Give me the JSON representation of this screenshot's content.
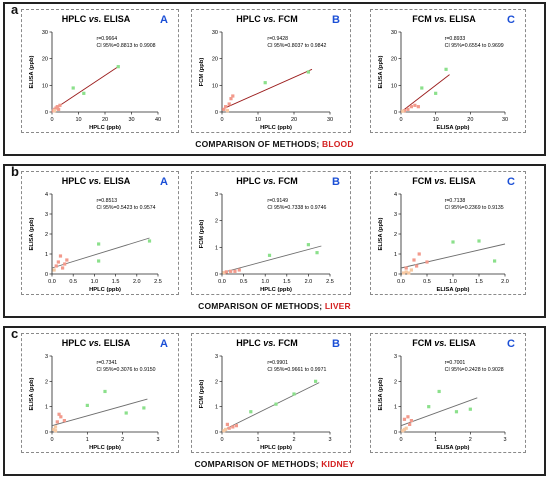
{
  "colors": {
    "accent_blue": "#1b4fd6",
    "organ_red": "#d42020",
    "fit_line_blood": "#9b1c1c",
    "fit_line_tissue": "#6e6e6e",
    "point_green": "#8be08b",
    "point_salmon": "#f29a8c",
    "point_peach": "#f7c9a3"
  },
  "panels": [
    {
      "letter": "a",
      "caption_prefix": "COMPARISON OF METHODS;",
      "caption_organ": "BLOOD",
      "charts": [
        {
          "title_main": "HPLC",
          "title_vs": "vs.",
          "title_second": "ELISA",
          "tag": "A",
          "stat_r": "r=0.9664",
          "stat_ci": "CI 95%=0.8813 to 0.9908",
          "xlabel": "HPLC (ppb)",
          "ylabel": "ELISA (ppb)"
        },
        {
          "title_main": "HPLC",
          "title_vs": "vs.",
          "title_second": "FCM",
          "tag": "B",
          "stat_r": "r=0.9428",
          "stat_ci": "CI 95%=0.8037 to 0.9842",
          "xlabel": "HPLC (ppb)",
          "ylabel": "FCM (ppb)"
        },
        {
          "title_main": "FCM",
          "title_vs": "vs.",
          "title_second": "ELISA",
          "tag": "C",
          "stat_r": "r=0.8933",
          "stat_ci": "CI 95%=0.6554 to 0.9699",
          "xlabel": "ELISA (ppb)",
          "ylabel": "ELISA (ppb)"
        }
      ]
    },
    {
      "letter": "b",
      "caption_prefix": "COMPARISON OF METHODS;",
      "caption_organ": "LIVER",
      "charts": [
        {
          "title_main": "HPLC",
          "title_vs": "vs.",
          "title_second": "ELISA",
          "tag": "A",
          "stat_r": "r=0.8513",
          "stat_ci": "CI 95%=0.5423 to 0.9574",
          "xlabel": "HPLC (ppb)",
          "ylabel": "ELISA (ppb)"
        },
        {
          "title_main": "HPLC",
          "title_vs": "vs.",
          "title_second": "FCM",
          "tag": "B",
          "stat_r": "r=0.9149",
          "stat_ci": "CI 95%=0.7338 to 0.9746",
          "xlabel": "HPLC (ppb)",
          "ylabel": "FCM (ppb)"
        },
        {
          "title_main": "FCM",
          "title_vs": "vs.",
          "title_second": "ELISA",
          "tag": "C",
          "stat_r": "r=0.7138",
          "stat_ci": "CI 95%=0.2369 to 0.9135",
          "xlabel": "ELISA (ppb)",
          "ylabel": "ELISA (ppb)"
        }
      ]
    },
    {
      "letter": "c",
      "caption_prefix": "COMPARISON OF METHODS;",
      "caption_organ": "KIDNEY",
      "charts": [
        {
          "title_main": "HPLC",
          "title_vs": "vs.",
          "title_second": "ELISA",
          "tag": "A",
          "stat_r": "r=0.7341",
          "stat_ci": "CI 95%=0.3076 to 0.9150",
          "xlabel": "HPLC (ppb)",
          "ylabel": "ELISA (ppb)"
        },
        {
          "title_main": "HPLC",
          "title_vs": "vs.",
          "title_second": "FCM",
          "tag": "B",
          "stat_r": "r=0.9901",
          "stat_ci": "CI 95%=0.9661 to 0.9971",
          "xlabel": "HPLC (ppb)",
          "ylabel": "FCM (ppb)"
        },
        {
          "title_main": "FCM",
          "title_vs": "vs.",
          "title_second": "ELISA",
          "tag": "C",
          "stat_r": "r=0.7001",
          "stat_ci": "CI 95%=0.2428 to 0.9028",
          "xlabel": "ELISA (ppb)",
          "ylabel": "ELISA (ppb)"
        }
      ]
    }
  ],
  "chart_data": [
    {
      "type": "scatter",
      "xlim": [
        0,
        40
      ],
      "ylim": [
        0,
        30
      ],
      "xticks": [
        0,
        10,
        20,
        30,
        40
      ],
      "yticks": [
        0,
        10,
        20,
        30
      ],
      "xticklabels": [
        "0",
        "10",
        "20",
        "30",
        "40"
      ],
      "yticklabels": [
        "0",
        "10",
        "20",
        "30"
      ],
      "fit": [
        [
          0,
          0.5
        ],
        [
          25,
          17
        ]
      ],
      "points": [
        [
          0.5,
          0.4,
          "s"
        ],
        [
          1,
          1,
          "s"
        ],
        [
          1.5,
          1.5,
          "s"
        ],
        [
          2,
          2,
          "s"
        ],
        [
          3,
          2.5,
          "s"
        ],
        [
          2.5,
          1,
          "s"
        ],
        [
          1,
          0.5,
          "p"
        ],
        [
          8,
          9,
          "g"
        ],
        [
          12,
          7,
          "g"
        ],
        [
          25,
          17,
          "g"
        ]
      ]
    },
    {
      "type": "scatter",
      "xlim": [
        0,
        30
      ],
      "ylim": [
        0,
        30
      ],
      "xticks": [
        0,
        10,
        20,
        30
      ],
      "yticks": [
        0,
        10,
        20,
        30
      ],
      "xticklabels": [
        "0",
        "10",
        "20",
        "30"
      ],
      "yticklabels": [
        "0",
        "10",
        "20",
        "30"
      ],
      "fit": [
        [
          0,
          1
        ],
        [
          25,
          16
        ]
      ],
      "points": [
        [
          0.5,
          1,
          "s"
        ],
        [
          1,
          2,
          "s"
        ],
        [
          2,
          3,
          "s"
        ],
        [
          2.5,
          5,
          "s"
        ],
        [
          3,
          6,
          "s"
        ],
        [
          1.5,
          0.5,
          "p"
        ],
        [
          12,
          11,
          "g"
        ],
        [
          24,
          15,
          "g"
        ]
      ]
    },
    {
      "type": "scatter",
      "xlim": [
        0,
        30
      ],
      "ylim": [
        0,
        30
      ],
      "xticks": [
        0,
        10,
        20,
        30
      ],
      "yticks": [
        0,
        10,
        20,
        30
      ],
      "xticklabels": [
        "0",
        "10",
        "20",
        "30"
      ],
      "yticklabels": [
        "0",
        "10",
        "20",
        "30"
      ],
      "fit": [
        [
          0,
          0
        ],
        [
          14,
          14
        ]
      ],
      "points": [
        [
          1,
          0.5,
          "s"
        ],
        [
          2,
          1,
          "s"
        ],
        [
          3,
          2,
          "s"
        ],
        [
          4,
          2.5,
          "s"
        ],
        [
          5,
          2,
          "s"
        ],
        [
          0.5,
          0.3,
          "p"
        ],
        [
          6,
          9,
          "g"
        ],
        [
          10,
          7,
          "g"
        ],
        [
          13,
          16,
          "g"
        ]
      ]
    },
    {
      "type": "scatter",
      "xlim": [
        0,
        2.5
      ],
      "ylim": [
        0,
        4
      ],
      "xticks": [
        0,
        0.5,
        1,
        1.5,
        2,
        2.5
      ],
      "yticks": [
        0,
        1,
        2,
        3,
        4
      ],
      "xticklabels": [
        "0.0",
        "0.5",
        "1.0",
        "1.5",
        "2.0",
        "2.5"
      ],
      "yticklabels": [
        "0",
        "1",
        "2",
        "3",
        "4"
      ],
      "fit": [
        [
          0,
          0.3
        ],
        [
          2.3,
          1.8
        ]
      ],
      "points": [
        [
          0.1,
          0.4,
          "s"
        ],
        [
          0.15,
          0.6,
          "s"
        ],
        [
          0.2,
          0.9,
          "s"
        ],
        [
          0.3,
          0.5,
          "s"
        ],
        [
          0.25,
          0.3,
          "s"
        ],
        [
          0.05,
          0.2,
          "p"
        ],
        [
          0.35,
          0.7,
          "s"
        ],
        [
          1.1,
          1.5,
          "g"
        ],
        [
          1.1,
          0.65,
          "g"
        ],
        [
          2.3,
          1.65,
          "g"
        ]
      ]
    },
    {
      "type": "scatter",
      "xlim": [
        0,
        2.5
      ],
      "ylim": [
        0,
        3
      ],
      "xticks": [
        0,
        0.5,
        1,
        1.5,
        2,
        2.5
      ],
      "yticks": [
        0,
        1,
        2,
        3
      ],
      "xticklabels": [
        "0.0",
        "0.5",
        "1.0",
        "1.5",
        "2.0",
        "2.5"
      ],
      "yticklabels": [
        "0",
        "1",
        "2",
        "3"
      ],
      "fit": [
        [
          0,
          0.05
        ],
        [
          2.3,
          1.05
        ]
      ],
      "points": [
        [
          0.05,
          0.05,
          "p"
        ],
        [
          0.1,
          0.08,
          "s"
        ],
        [
          0.2,
          0.1,
          "s"
        ],
        [
          0.3,
          0.1,
          "s"
        ],
        [
          0.4,
          0.15,
          "s"
        ],
        [
          1.1,
          0.7,
          "g"
        ],
        [
          2,
          1.1,
          "g"
        ],
        [
          2.2,
          0.8,
          "g"
        ]
      ]
    },
    {
      "type": "scatter",
      "xlim": [
        0,
        2
      ],
      "ylim": [
        0,
        4
      ],
      "xticks": [
        0,
        0.5,
        1,
        1.5,
        2
      ],
      "yticks": [
        0,
        1,
        2,
        3,
        4
      ],
      "xticklabels": [
        "0.0",
        "0.5",
        "1.0",
        "1.5",
        "2.0"
      ],
      "yticklabels": [
        "0",
        "1",
        "2",
        "3",
        "4"
      ],
      "fit": [
        [
          0,
          0.3
        ],
        [
          2,
          1.5
        ]
      ],
      "points": [
        [
          0.05,
          0.05,
          "p"
        ],
        [
          0.1,
          0.1,
          "p"
        ],
        [
          0.15,
          0.05,
          "p"
        ],
        [
          0.2,
          0.2,
          "p"
        ],
        [
          0.25,
          0.7,
          "s"
        ],
        [
          0.3,
          0.4,
          "s"
        ],
        [
          0.35,
          1.0,
          "s"
        ],
        [
          0.5,
          0.6,
          "s"
        ],
        [
          0.1,
          0.3,
          "s"
        ],
        [
          1.0,
          1.6,
          "g"
        ],
        [
          1.5,
          1.65,
          "g"
        ],
        [
          1.8,
          0.65,
          "g"
        ]
      ]
    },
    {
      "type": "scatter",
      "xlim": [
        0,
        3
      ],
      "ylim": [
        0,
        3
      ],
      "xticks": [
        0,
        1,
        2,
        3
      ],
      "yticks": [
        0,
        1,
        2,
        3
      ],
      "xticklabels": [
        "0",
        "1",
        "2",
        "3"
      ],
      "yticklabels": [
        "0",
        "1",
        "2",
        "3"
      ],
      "fit": [
        [
          0,
          0.25
        ],
        [
          2.7,
          1.3
        ]
      ],
      "points": [
        [
          0.05,
          0.1,
          "p"
        ],
        [
          0.1,
          0.2,
          "p"
        ],
        [
          0.15,
          0.4,
          "s"
        ],
        [
          0.2,
          0.7,
          "s"
        ],
        [
          0.25,
          0.6,
          "s"
        ],
        [
          0.35,
          0.45,
          "s"
        ],
        [
          0.1,
          0.05,
          "p"
        ],
        [
          1,
          1.05,
          "g"
        ],
        [
          1.5,
          1.6,
          "g"
        ],
        [
          2.1,
          0.75,
          "g"
        ],
        [
          2.6,
          0.95,
          "g"
        ]
      ]
    },
    {
      "type": "scatter",
      "xlim": [
        0,
        3
      ],
      "ylim": [
        0,
        3
      ],
      "xticks": [
        0,
        1,
        2,
        3
      ],
      "yticks": [
        0,
        1,
        2,
        3
      ],
      "xticklabels": [
        "0",
        "1",
        "2",
        "3"
      ],
      "yticklabels": [
        "0",
        "1",
        "2",
        "3"
      ],
      "fit": [
        [
          0,
          0.05
        ],
        [
          2.7,
          1.95
        ]
      ],
      "points": [
        [
          0.05,
          0.05,
          "p"
        ],
        [
          0.1,
          0.1,
          "p"
        ],
        [
          0.2,
          0.15,
          "s"
        ],
        [
          0.3,
          0.2,
          "s"
        ],
        [
          0.4,
          0.25,
          "s"
        ],
        [
          0.15,
          0.3,
          "s"
        ],
        [
          0.8,
          0.8,
          "g"
        ],
        [
          1.5,
          1.1,
          "g"
        ],
        [
          2,
          1.5,
          "g"
        ],
        [
          2.6,
          2.0,
          "g"
        ]
      ]
    },
    {
      "type": "scatter",
      "xlim": [
        0,
        3
      ],
      "ylim": [
        0,
        3
      ],
      "xticks": [
        0,
        1,
        2,
        3
      ],
      "yticks": [
        0,
        1,
        2,
        3
      ],
      "xticklabels": [
        "0",
        "1",
        "2",
        "3"
      ],
      "yticklabels": [
        "0",
        "1",
        "2",
        "3"
      ],
      "fit": [
        [
          0,
          0.25
        ],
        [
          2.2,
          1.35
        ]
      ],
      "points": [
        [
          0.05,
          0.05,
          "p"
        ],
        [
          0.1,
          0.1,
          "p"
        ],
        [
          0.15,
          0.15,
          "p"
        ],
        [
          0.2,
          0.6,
          "s"
        ],
        [
          0.25,
          0.3,
          "s"
        ],
        [
          0.3,
          0.45,
          "s"
        ],
        [
          0.1,
          0.5,
          "s"
        ],
        [
          0.8,
          1.0,
          "g"
        ],
        [
          1.1,
          1.6,
          "g"
        ],
        [
          1.6,
          0.8,
          "g"
        ],
        [
          2.0,
          0.9,
          "g"
        ]
      ]
    }
  ]
}
